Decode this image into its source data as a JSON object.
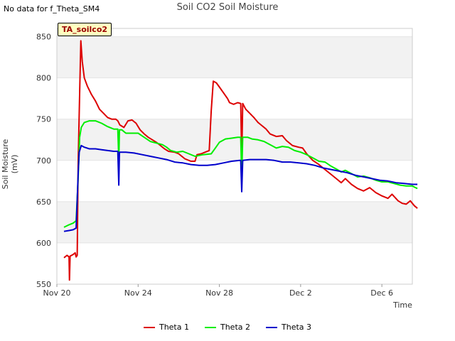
{
  "header": {
    "no_data": "No data for f_Theta_SM4",
    "tag": "TA_soilco2"
  },
  "chart_data": {
    "type": "line",
    "title": "Soil CO2 Soil Moisture",
    "xlabel": "Time",
    "ylabel": "Soil Moisture (mV)",
    "xlim": [
      0,
      17.5
    ],
    "ylim": [
      550,
      860
    ],
    "yticks": [
      550,
      600,
      650,
      700,
      750,
      800,
      850
    ],
    "xticks": [
      {
        "value": 0,
        "label": "Nov 20"
      },
      {
        "value": 4,
        "label": "Nov 24"
      },
      {
        "value": 8,
        "label": "Nov 28"
      },
      {
        "value": 12,
        "label": "Dec 2"
      },
      {
        "value": 16,
        "label": "Dec 6"
      }
    ],
    "series": [
      {
        "name": "Theta 1",
        "color": "#dd0000",
        "points": [
          [
            0.35,
            582
          ],
          [
            0.5,
            585
          ],
          [
            0.6,
            583
          ],
          [
            0.62,
            555
          ],
          [
            0.65,
            584
          ],
          [
            0.8,
            586
          ],
          [
            0.9,
            588
          ],
          [
            0.95,
            583
          ],
          [
            1.0,
            585
          ],
          [
            1.05,
            700
          ],
          [
            1.12,
            780
          ],
          [
            1.18,
            845
          ],
          [
            1.25,
            820
          ],
          [
            1.35,
            800
          ],
          [
            1.5,
            790
          ],
          [
            1.7,
            780
          ],
          [
            1.9,
            772
          ],
          [
            2.1,
            762
          ],
          [
            2.3,
            757
          ],
          [
            2.5,
            752
          ],
          [
            2.7,
            750
          ],
          [
            2.9,
            750
          ],
          [
            3.0,
            748
          ],
          [
            3.1,
            743
          ],
          [
            3.3,
            740
          ],
          [
            3.5,
            748
          ],
          [
            3.7,
            749
          ],
          [
            3.9,
            745
          ],
          [
            4.1,
            737
          ],
          [
            4.3,
            732
          ],
          [
            4.5,
            728
          ],
          [
            4.7,
            725
          ],
          [
            4.9,
            722
          ],
          [
            5.1,
            718
          ],
          [
            5.3,
            714
          ],
          [
            5.5,
            711
          ],
          [
            5.8,
            710
          ],
          [
            6.0,
            708
          ],
          [
            6.3,
            702
          ],
          [
            6.6,
            699
          ],
          [
            6.8,
            699
          ],
          [
            6.9,
            707
          ],
          [
            7.1,
            708
          ],
          [
            7.3,
            710
          ],
          [
            7.5,
            712
          ],
          [
            7.6,
            760
          ],
          [
            7.7,
            796
          ],
          [
            7.85,
            794
          ],
          [
            8.0,
            789
          ],
          [
            8.2,
            782
          ],
          [
            8.4,
            775
          ],
          [
            8.5,
            770
          ],
          [
            8.7,
            768
          ],
          [
            8.9,
            770
          ],
          [
            9.05,
            769
          ],
          [
            9.1,
            700
          ],
          [
            9.15,
            769
          ],
          [
            9.3,
            762
          ],
          [
            9.5,
            757
          ],
          [
            9.7,
            752
          ],
          [
            9.9,
            746
          ],
          [
            10.1,
            742
          ],
          [
            10.3,
            738
          ],
          [
            10.5,
            732
          ],
          [
            10.8,
            729
          ],
          [
            11.1,
            730
          ],
          [
            11.3,
            724
          ],
          [
            11.6,
            718
          ],
          [
            11.9,
            716
          ],
          [
            12.1,
            715
          ],
          [
            12.3,
            708
          ],
          [
            12.6,
            700
          ],
          [
            12.9,
            695
          ],
          [
            13.2,
            689
          ],
          [
            13.5,
            683
          ],
          [
            13.8,
            677
          ],
          [
            14.0,
            673
          ],
          [
            14.2,
            678
          ],
          [
            14.5,
            671
          ],
          [
            14.8,
            666
          ],
          [
            15.1,
            663
          ],
          [
            15.4,
            667
          ],
          [
            15.7,
            661
          ],
          [
            16.0,
            657
          ],
          [
            16.3,
            654
          ],
          [
            16.5,
            659
          ],
          [
            16.8,
            651
          ],
          [
            17.0,
            648
          ],
          [
            17.2,
            647
          ],
          [
            17.4,
            651
          ],
          [
            17.6,
            645
          ],
          [
            17.75,
            642
          ]
        ]
      },
      {
        "name": "Theta 2",
        "color": "#00ee00",
        "points": [
          [
            0.35,
            619
          ],
          [
            0.6,
            622
          ],
          [
            0.8,
            624
          ],
          [
            0.95,
            627
          ],
          [
            1.05,
            680
          ],
          [
            1.12,
            728
          ],
          [
            1.2,
            740
          ],
          [
            1.35,
            746
          ],
          [
            1.6,
            748
          ],
          [
            1.9,
            748
          ],
          [
            2.2,
            745
          ],
          [
            2.5,
            741
          ],
          [
            2.8,
            738
          ],
          [
            3.0,
            738
          ],
          [
            3.05,
            700
          ],
          [
            3.08,
            737
          ],
          [
            3.2,
            737
          ],
          [
            3.4,
            733
          ],
          [
            3.7,
            733
          ],
          [
            4.0,
            733
          ],
          [
            4.3,
            728
          ],
          [
            4.6,
            723
          ],
          [
            4.9,
            721
          ],
          [
            5.2,
            719
          ],
          [
            5.4,
            716
          ],
          [
            5.6,
            712
          ],
          [
            5.9,
            710
          ],
          [
            6.2,
            711
          ],
          [
            6.5,
            708
          ],
          [
            6.8,
            705
          ],
          [
            7.2,
            707
          ],
          [
            7.6,
            708
          ],
          [
            7.8,
            715
          ],
          [
            8.0,
            722
          ],
          [
            8.3,
            726
          ],
          [
            8.6,
            727
          ],
          [
            8.9,
            728
          ],
          [
            9.05,
            728
          ],
          [
            9.1,
            680
          ],
          [
            9.15,
            728
          ],
          [
            9.4,
            728
          ],
          [
            9.6,
            726
          ],
          [
            9.9,
            725
          ],
          [
            10.2,
            723
          ],
          [
            10.5,
            719
          ],
          [
            10.8,
            715
          ],
          [
            11.1,
            717
          ],
          [
            11.4,
            716
          ],
          [
            11.7,
            712
          ],
          [
            12.0,
            710
          ],
          [
            12.3,
            707
          ],
          [
            12.6,
            703
          ],
          [
            12.9,
            699
          ],
          [
            13.2,
            698
          ],
          [
            13.5,
            693
          ],
          [
            13.8,
            689
          ],
          [
            14.0,
            686
          ],
          [
            14.2,
            688
          ],
          [
            14.5,
            684
          ],
          [
            14.8,
            680
          ],
          [
            15.1,
            681
          ],
          [
            15.4,
            679
          ],
          [
            15.7,
            676
          ],
          [
            16.0,
            674
          ],
          [
            16.3,
            674
          ],
          [
            16.6,
            672
          ],
          [
            16.9,
            670
          ],
          [
            17.2,
            669
          ],
          [
            17.5,
            669
          ],
          [
            17.65,
            667
          ],
          [
            17.75,
            666
          ]
        ]
      },
      {
        "name": "Theta 3",
        "color": "#0000cc",
        "points": [
          [
            0.35,
            614
          ],
          [
            0.6,
            615
          ],
          [
            0.8,
            616
          ],
          [
            0.95,
            618
          ],
          [
            1.05,
            685
          ],
          [
            1.1,
            710
          ],
          [
            1.2,
            718
          ],
          [
            1.35,
            716
          ],
          [
            1.6,
            714
          ],
          [
            1.9,
            714
          ],
          [
            2.2,
            713
          ],
          [
            2.5,
            712
          ],
          [
            2.8,
            711
          ],
          [
            3.0,
            711
          ],
          [
            3.05,
            670
          ],
          [
            3.08,
            710
          ],
          [
            3.4,
            710
          ],
          [
            3.8,
            709
          ],
          [
            4.2,
            707
          ],
          [
            4.6,
            705
          ],
          [
            5.0,
            703
          ],
          [
            5.4,
            701
          ],
          [
            5.8,
            698
          ],
          [
            6.2,
            697
          ],
          [
            6.6,
            695
          ],
          [
            7.0,
            694
          ],
          [
            7.4,
            694
          ],
          [
            7.8,
            695
          ],
          [
            8.2,
            697
          ],
          [
            8.6,
            699
          ],
          [
            9.0,
            700
          ],
          [
            9.05,
            700
          ],
          [
            9.1,
            662
          ],
          [
            9.15,
            700
          ],
          [
            9.5,
            701
          ],
          [
            9.9,
            701
          ],
          [
            10.3,
            701
          ],
          [
            10.7,
            700
          ],
          [
            11.1,
            698
          ],
          [
            11.5,
            698
          ],
          [
            11.9,
            697
          ],
          [
            12.3,
            696
          ],
          [
            12.7,
            694
          ],
          [
            13.1,
            691
          ],
          [
            13.5,
            689
          ],
          [
            13.9,
            687
          ],
          [
            14.3,
            685
          ],
          [
            14.7,
            682
          ],
          [
            15.1,
            680
          ],
          [
            15.5,
            678
          ],
          [
            15.9,
            676
          ],
          [
            16.3,
            675
          ],
          [
            16.7,
            673
          ],
          [
            17.1,
            672
          ],
          [
            17.5,
            671
          ],
          [
            17.75,
            671
          ]
        ]
      }
    ]
  }
}
